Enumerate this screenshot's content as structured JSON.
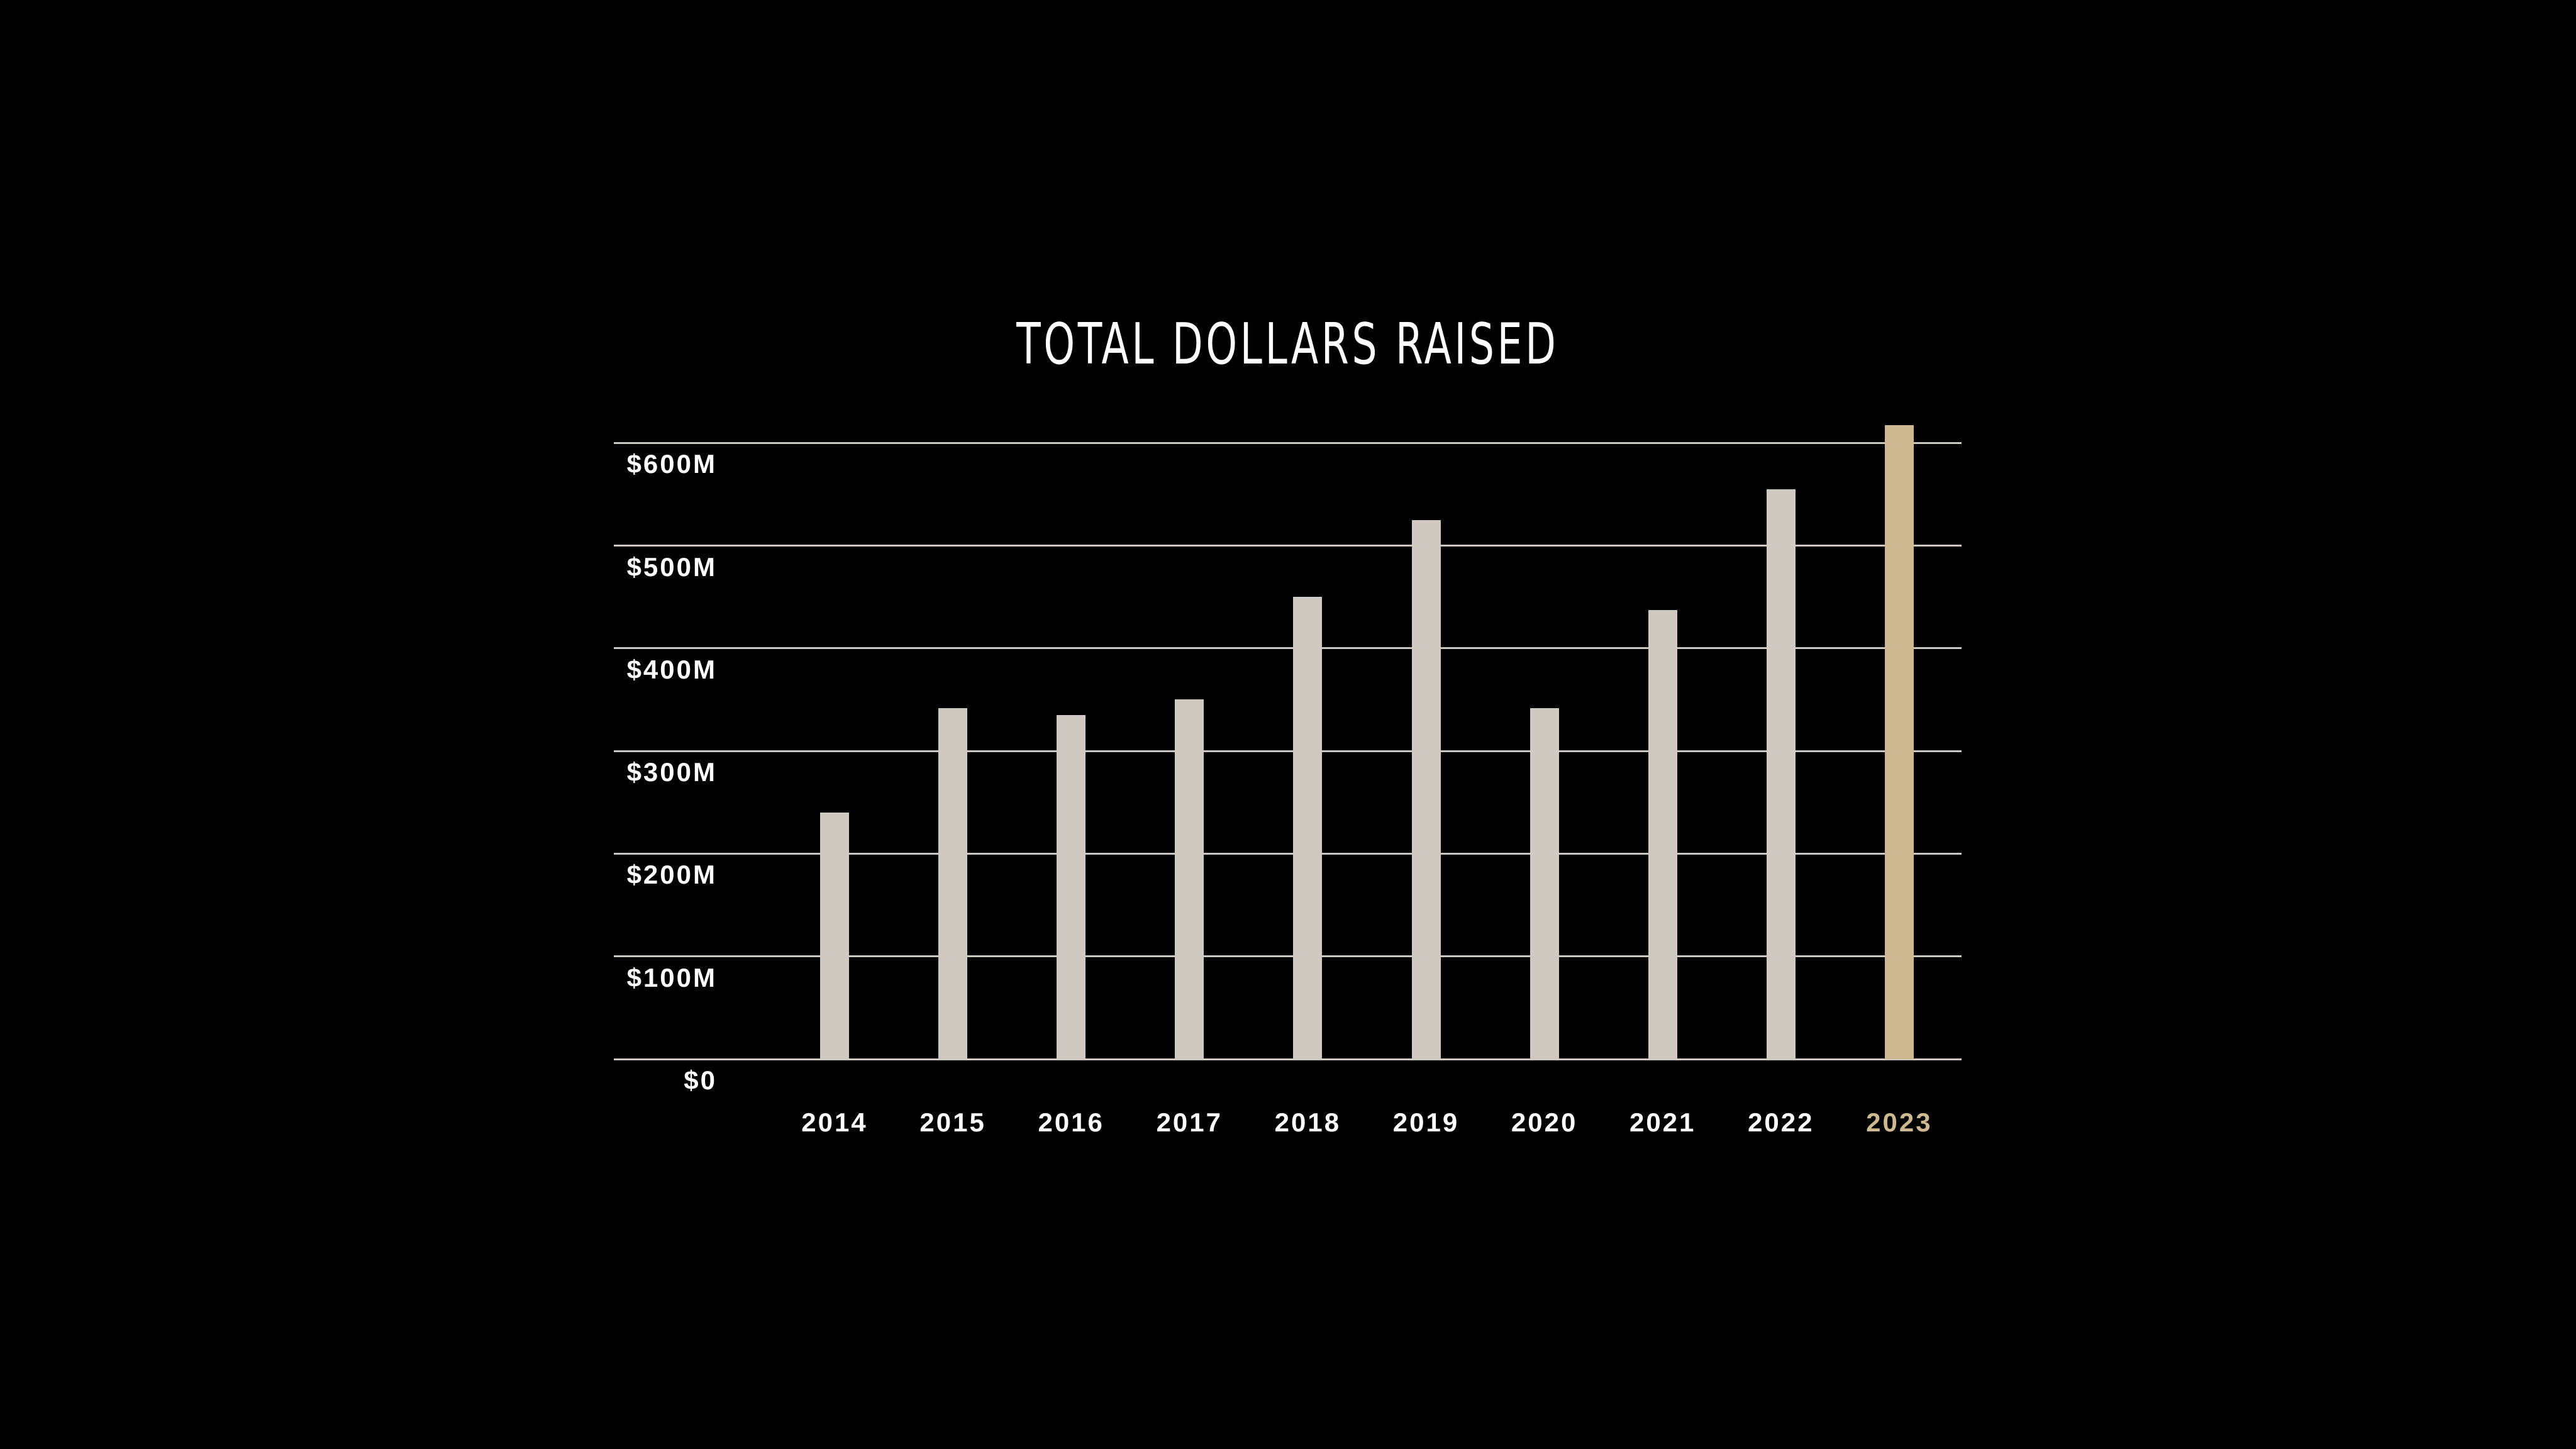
{
  "title": "TOTAL DOLLARS RAISED",
  "colors": {
    "background": "#000000",
    "bar_default": "#d0c9c1",
    "bar_highlight": "#cdb891",
    "gridline": "#cfc8c0",
    "label_default": "#ffffff",
    "label_highlight": "#cdb891"
  },
  "y_axis": {
    "ticks": [
      "$0",
      "$100M",
      "$200M",
      "$300M",
      "$400M",
      "$500M",
      "$600M"
    ]
  },
  "x_axis": {
    "ticks": [
      "2014",
      "2015",
      "2016",
      "2017",
      "2018",
      "2019",
      "2020",
      "2021",
      "2022",
      "2023"
    ]
  },
  "chart_data": {
    "type": "bar",
    "title": "TOTAL DOLLARS RAISED",
    "xlabel": "",
    "ylabel": "",
    "categories": [
      "2014",
      "2015",
      "2016",
      "2017",
      "2018",
      "2019",
      "2020",
      "2021",
      "2022",
      "2023"
    ],
    "values": [
      240,
      342,
      335,
      350,
      450,
      525,
      342,
      437,
      555,
      617
    ],
    "units": "USD millions",
    "highlight": "2023",
    "ylim": [
      0,
      600
    ],
    "yticks": [
      0,
      100,
      200,
      300,
      400,
      500,
      600
    ],
    "ytick_labels": [
      "$0",
      "$100M",
      "$200M",
      "$300M",
      "$400M",
      "$500M",
      "$600M"
    ],
    "grid": true,
    "legend": null
  }
}
